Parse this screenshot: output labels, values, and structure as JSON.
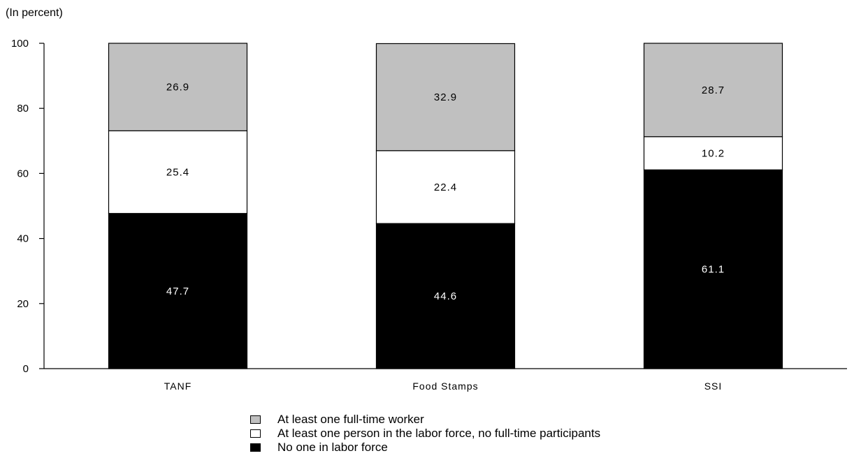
{
  "chart_data": {
    "type": "bar",
    "stacked": true,
    "unit_label": "(In percent)",
    "title": "",
    "xlabel": "",
    "ylabel": "",
    "categories": [
      "TANF",
      "Food Stamps",
      "SSI"
    ],
    "ylim": [
      0,
      100
    ],
    "yticks": [
      0,
      20,
      40,
      60,
      80,
      100
    ],
    "series": [
      {
        "name": "No one in labor force",
        "values": [
          47.7,
          44.6,
          61.1
        ],
        "color": "#000000",
        "label_color": "#ffffff"
      },
      {
        "name": "At least one person in the labor force, no full-time participants",
        "values": [
          25.4,
          22.4,
          10.2
        ],
        "color": "#ffffff",
        "label_color": "#000000"
      },
      {
        "name": "At least one full-time worker",
        "values": [
          26.9,
          32.9,
          28.7
        ],
        "color": "#c0c0c0",
        "label_color": "#000000"
      }
    ],
    "legend_order": [
      2,
      1,
      0
    ],
    "grid": false,
    "legend_position": "bottom-center"
  }
}
